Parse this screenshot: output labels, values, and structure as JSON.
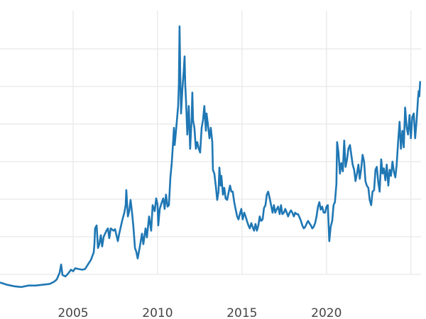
{
  "chart_data": {
    "type": "line",
    "title": "",
    "xlabel": "",
    "ylabel": "",
    "xlim": [
      2000.67,
      2025.6
    ],
    "ylim": [
      1.4,
      40.1
    ],
    "grid": true,
    "legend": "none",
    "x_ticks": [
      2005,
      2010,
      2015,
      2020,
      2025
    ],
    "x_tick_labels": [
      "2005",
      "2010",
      "2015",
      "2020",
      ""
    ],
    "y_gridlines": [
      5,
      10,
      15,
      20,
      25,
      30,
      35
    ],
    "y_tick_labels_shown": false,
    "color": "#1f77b4",
    "series": [
      {
        "x": [
          2000.67,
          2001.09,
          2001.51,
          2001.93,
          2002.35,
          2002.77,
          2003.19,
          2003.61,
          2003.87,
          2004.03,
          2004.2,
          2004.29,
          2004.37,
          2004.54,
          2004.71,
          2004.87,
          2005.0,
          2005.13,
          2005.29,
          2005.55,
          2005.71,
          2005.88,
          2006.05,
          2006.22,
          2006.26,
          2006.3,
          2006.39,
          2006.47,
          2006.55,
          2006.64,
          2006.72,
          2006.81,
          2006.97,
          2007.06,
          2007.14,
          2007.23,
          2007.39,
          2007.48,
          2007.65,
          2007.73,
          2007.9,
          2008.03,
          2008.11,
          2008.15,
          2008.24,
          2008.32,
          2008.4,
          2008.49,
          2008.57,
          2008.66,
          2008.74,
          2008.82,
          2008.95,
          2009.08,
          2009.16,
          2009.29,
          2009.37,
          2009.5,
          2009.62,
          2009.71,
          2009.83,
          2009.92,
          2010.0,
          2010.04,
          2010.13,
          2010.25,
          2010.34,
          2010.42,
          2010.5,
          2010.59,
          2010.67,
          2010.76,
          2010.84,
          2010.92,
          2010.97,
          2011.01,
          2011.09,
          2011.18,
          2011.22,
          2011.26,
          2011.3,
          2011.34,
          2011.39,
          2011.47,
          2011.55,
          2011.6,
          2011.64,
          2011.68,
          2011.76,
          2011.85,
          2011.93,
          2012.02,
          2012.06,
          2012.1,
          2012.18,
          2012.27,
          2012.35,
          2012.44,
          2012.52,
          2012.61,
          2012.69,
          2012.77,
          2012.86,
          2012.9,
          2012.98,
          2013.07,
          2013.15,
          2013.24,
          2013.28,
          2013.36,
          2013.45,
          2013.53,
          2013.61,
          2013.66,
          2013.74,
          2013.78,
          2013.87,
          2013.95,
          2014.03,
          2014.12,
          2014.2,
          2014.29,
          2014.37,
          2014.45,
          2014.54,
          2014.62,
          2014.71,
          2014.79,
          2014.87,
          2014.96,
          2015.04,
          2015.13,
          2015.21,
          2015.29,
          2015.38,
          2015.46,
          2015.55,
          2015.63,
          2015.71,
          2015.8,
          2015.88,
          2015.97,
          2016.05,
          2016.13,
          2016.22,
          2016.3,
          2016.39,
          2016.47,
          2016.55,
          2016.64,
          2016.72,
          2016.81,
          2016.89,
          2016.97,
          2017.06,
          2017.14,
          2017.23,
          2017.31,
          2017.39,
          2017.48,
          2017.56,
          2017.65,
          2017.73,
          2017.82,
          2017.9,
          2017.98,
          2018.07,
          2018.15,
          2018.24,
          2018.32,
          2018.4,
          2018.49,
          2018.57,
          2018.66,
          2018.74,
          2018.82,
          2018.91,
          2018.99,
          2019.08,
          2019.16,
          2019.24,
          2019.33,
          2019.41,
          2019.5,
          2019.58,
          2019.66,
          2019.75,
          2019.83,
          2019.92,
          2020.0,
          2020.08,
          2020.17,
          2020.25,
          2020.34,
          2020.42,
          2020.5,
          2020.59,
          2020.63,
          2020.71,
          2020.8,
          2020.88,
          2020.97,
          2021.05,
          2021.13,
          2021.22,
          2021.3,
          2021.39,
          2021.47,
          2021.55,
          2021.64,
          2021.72,
          2021.81,
          2021.89,
          2021.97,
          2022.06,
          2022.14,
          2022.23,
          2022.31,
          2022.39,
          2022.48,
          2022.56,
          2022.65,
          2022.73,
          2022.82,
          2022.9,
          2022.98,
          2023.07,
          2023.15,
          2023.24,
          2023.32,
          2023.4,
          2023.49,
          2023.57,
          2023.66,
          2023.74,
          2023.82,
          2023.91,
          2023.99,
          2024.08,
          2024.16,
          2024.24,
          2024.33,
          2024.41,
          2024.5,
          2024.58,
          2024.66,
          2024.75,
          2024.83,
          2024.92,
          2025.0,
          2025.08,
          2025.17,
          2025.25,
          2025.34,
          2025.42,
          2025.46,
          2025.5,
          2025.55
        ],
        "y": [
          3.9,
          3.6,
          3.4,
          3.3,
          3.5,
          3.5,
          3.6,
          3.7,
          4.0,
          4.3,
          5.2,
          6.3,
          4.9,
          4.7,
          5.1,
          5.6,
          5.4,
          5.8,
          5.7,
          5.6,
          5.7,
          6.3,
          6.9,
          7.9,
          9.0,
          11.1,
          11.5,
          8.5,
          9.0,
          10.2,
          8.7,
          10.0,
          10.8,
          11.1,
          9.8,
          11.1,
          10.8,
          11.0,
          9.4,
          10.4,
          12.1,
          13.2,
          14.2,
          16.2,
          12.7,
          13.4,
          14.9,
          13.2,
          11.3,
          8.5,
          8.0,
          7.1,
          8.7,
          10.4,
          9.0,
          11.1,
          9.9,
          12.7,
          10.8,
          14.2,
          13.4,
          15.1,
          14.3,
          11.5,
          13.7,
          14.6,
          15.1,
          13.7,
          15.6,
          14.0,
          14.2,
          17.9,
          19.8,
          22.6,
          24.5,
          22.2,
          24.1,
          26.4,
          27.4,
          30.2,
          38.0,
          32.1,
          26.4,
          29.7,
          32.1,
          34.0,
          30.2,
          28.3,
          23.6,
          27.4,
          21.7,
          25.9,
          29.2,
          25.5,
          24.5,
          21.7,
          22.6,
          21.7,
          21.2,
          24.5,
          25.5,
          27.4,
          24.1,
          26.4,
          25.0,
          23.1,
          24.5,
          22.6,
          18.9,
          18.4,
          16.7,
          14.9,
          16.0,
          19.2,
          16.8,
          18.1,
          15.6,
          16.5,
          15.1,
          14.9,
          15.8,
          16.8,
          16.0,
          16.0,
          14.6,
          13.7,
          12.7,
          12.3,
          13.0,
          13.7,
          12.3,
          13.2,
          12.7,
          12.1,
          11.5,
          11.1,
          11.8,
          11.3,
          10.8,
          11.7,
          10.8,
          11.5,
          12.7,
          12.1,
          12.3,
          13.8,
          14.2,
          15.6,
          16.0,
          15.1,
          14.2,
          13.2,
          14.2,
          13.2,
          13.7,
          14.0,
          13.0,
          14.2,
          13.0,
          13.2,
          13.7,
          13.2,
          12.7,
          13.2,
          13.5,
          13.2,
          12.7,
          13.2,
          13.0,
          13.0,
          12.6,
          12.1,
          11.5,
          11.1,
          11.3,
          11.7,
          12.1,
          11.8,
          11.5,
          11.1,
          11.3,
          11.8,
          12.7,
          14.0,
          14.6,
          13.6,
          14.0,
          13.2,
          13.2,
          14.0,
          14.2,
          9.4,
          11.3,
          12.1,
          14.2,
          14.6,
          17.0,
          22.6,
          21.2,
          18.4,
          19.8,
          18.7,
          22.8,
          19.3,
          20.3,
          21.7,
          22.2,
          20.9,
          19.6,
          18.9,
          17.4,
          18.4,
          19.6,
          17.7,
          19.1,
          20.9,
          20.0,
          17.4,
          16.8,
          16.5,
          14.9,
          14.2,
          16.0,
          16.2,
          18.9,
          19.3,
          17.2,
          16.0,
          20.3,
          18.4,
          19.1,
          17.5,
          19.6,
          16.8,
          18.9,
          18.1,
          20.0,
          18.7,
          17.9,
          19.6,
          22.6,
          25.3,
          21.7,
          24.1,
          21.9,
          27.2,
          24.5,
          23.6,
          26.2,
          23.1,
          25.9,
          26.4,
          23.1,
          25.5,
          28.3,
          29.4,
          28.7,
          30.7
        ]
      }
    ]
  }
}
